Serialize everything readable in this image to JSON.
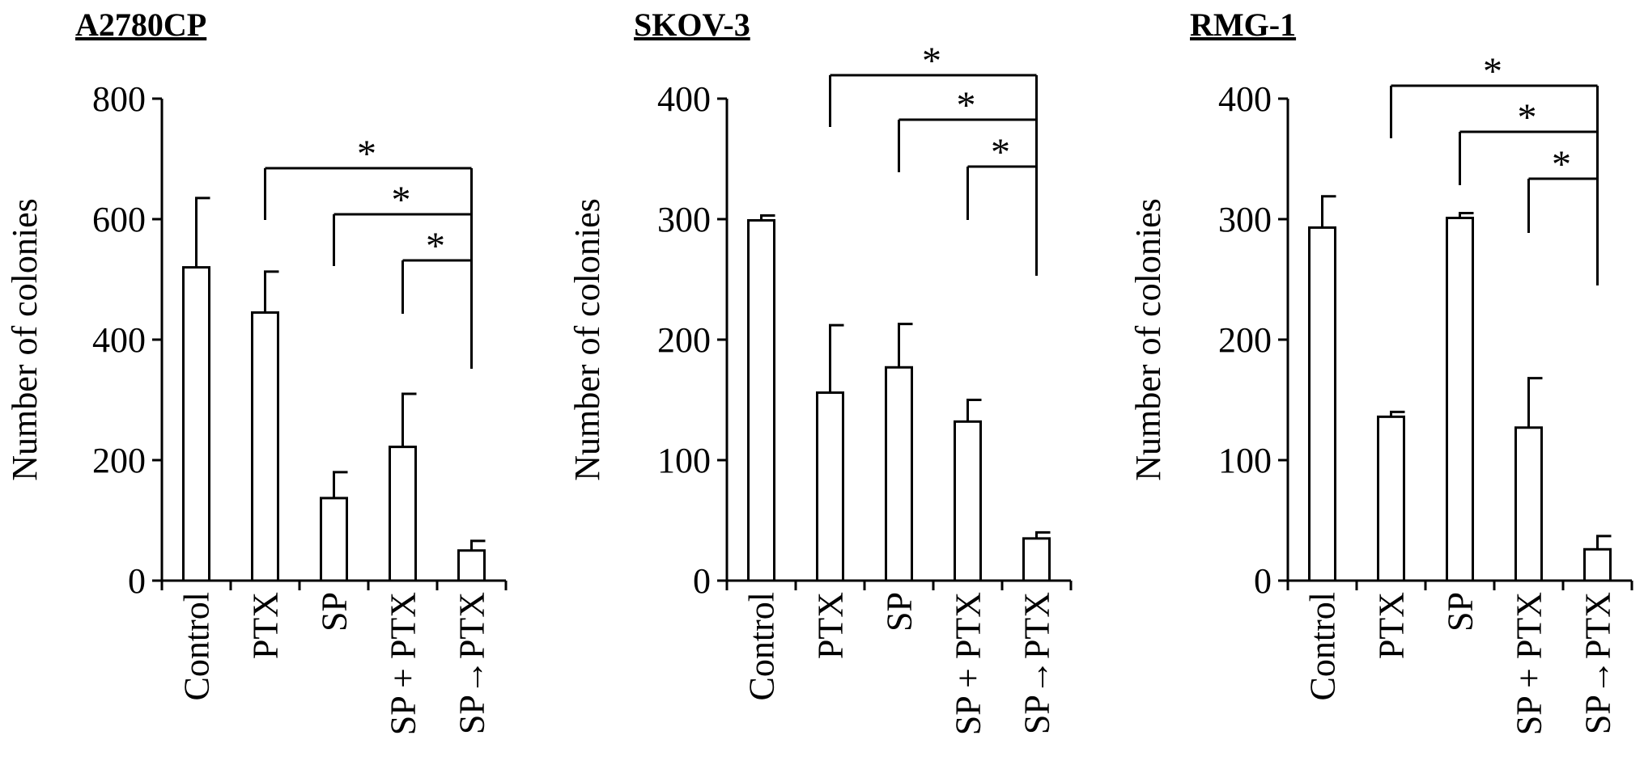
{
  "chart_data": [
    {
      "type": "bar",
      "title": "A2780CP",
      "ylabel": "Number of colonies",
      "ylim": [
        0,
        800
      ],
      "yticks": [
        "0",
        "200",
        "400",
        "600",
        "800"
      ],
      "categories": [
        "Control",
        "PTX",
        "SP",
        "SP + PTX",
        "SP→PTX"
      ],
      "values": [
        520,
        445,
        137,
        222,
        50
      ],
      "errors": [
        115,
        68,
        43,
        88,
        16
      ],
      "significance": [
        {
          "from": "PTX",
          "to": "SP→PTX",
          "label": "*"
        },
        {
          "from": "SP",
          "to": "SP→PTX",
          "label": "*"
        },
        {
          "from": "SP + PTX",
          "to": "SP→PTX",
          "label": "*"
        }
      ],
      "grid": false,
      "legend": "none"
    },
    {
      "type": "bar",
      "title": "SKOV-3",
      "ylabel": "Number of colonies",
      "ylim": [
        0,
        400
      ],
      "yticks": [
        "0",
        "100",
        "200",
        "300",
        "400"
      ],
      "categories": [
        "Control",
        "PTX",
        "SP",
        "SP + PTX",
        "SP→PTX"
      ],
      "values": [
        299,
        156,
        177,
        132,
        35
      ],
      "errors": [
        4,
        56,
        36,
        18,
        5
      ],
      "significance": [
        {
          "from": "PTX",
          "to": "SP→PTX",
          "label": "*"
        },
        {
          "from": "SP",
          "to": "SP→PTX",
          "label": "*"
        },
        {
          "from": "SP + PTX",
          "to": "SP→PTX",
          "label": "*"
        }
      ],
      "grid": false,
      "legend": "none"
    },
    {
      "type": "bar",
      "title": "RMG-1",
      "ylabel": "Number of colonies",
      "ylim": [
        0,
        400
      ],
      "yticks": [
        "0",
        "100",
        "200",
        "300",
        "400"
      ],
      "categories": [
        "Control",
        "PTX",
        "SP",
        "SP + PTX",
        "SP→PTX"
      ],
      "values": [
        293,
        136,
        301,
        127,
        26
      ],
      "errors": [
        26,
        4,
        4,
        41,
        11
      ],
      "significance": [
        {
          "from": "PTX",
          "to": "SP→PTX",
          "label": "*"
        },
        {
          "from": "SP",
          "to": "SP→PTX",
          "label": "*"
        },
        {
          "from": "SP + PTX",
          "to": "SP→PTX",
          "label": "*"
        }
      ],
      "grid": false,
      "legend": "none"
    }
  ],
  "colors": {
    "bar_fill": "#ffffff",
    "stroke": "#000000",
    "background": "#ffffff"
  }
}
